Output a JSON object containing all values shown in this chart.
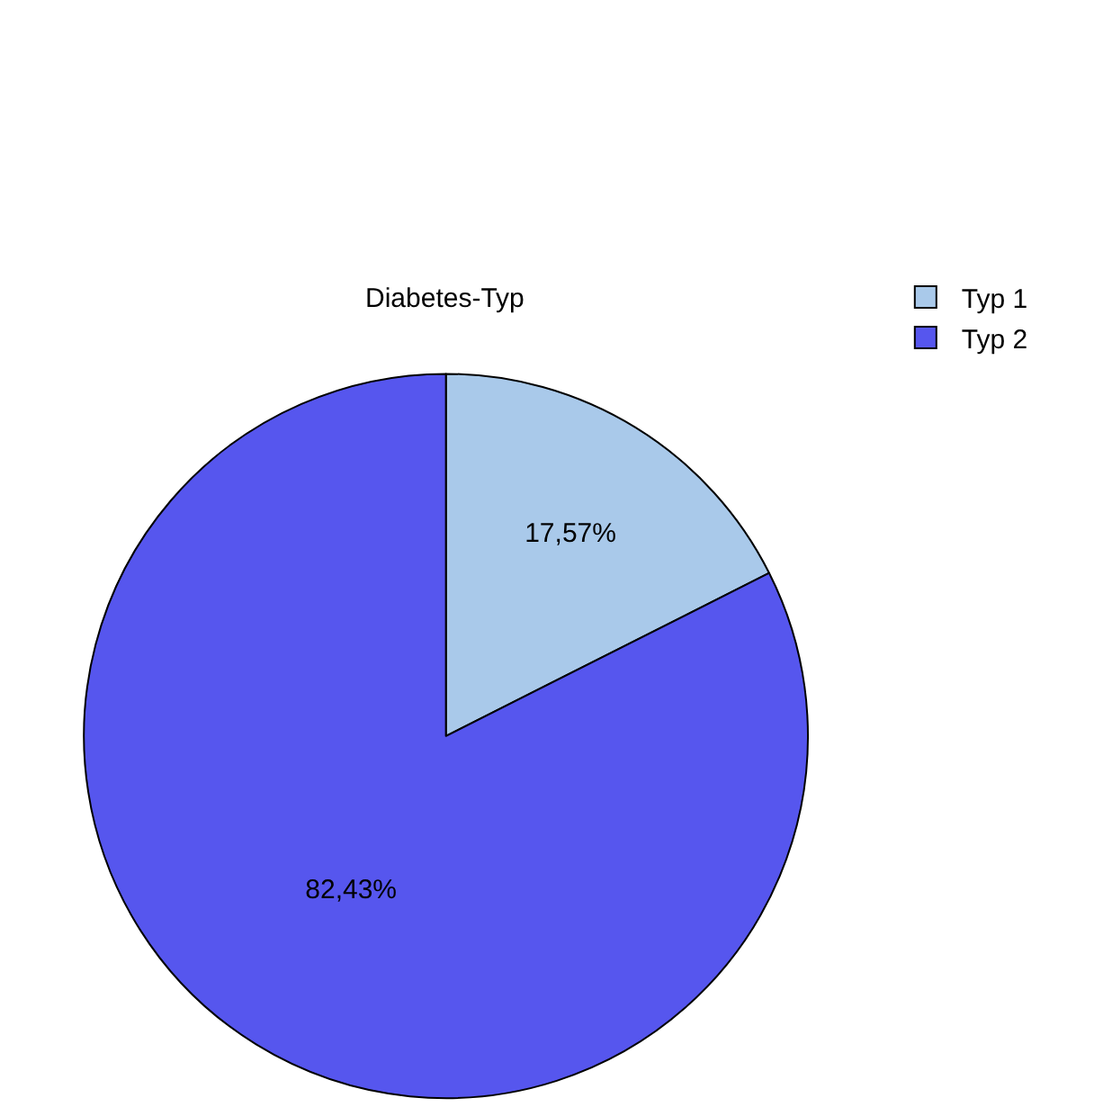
{
  "chart_data": {
    "type": "pie",
    "title": "Diabetes-Typ",
    "categories": [
      "Typ 1",
      "Typ 2"
    ],
    "values": [
      17.57,
      82.43
    ],
    "colors": [
      "#a9c9ea",
      "#5656ee"
    ],
    "value_labels": [
      "17,57%",
      "82,43%"
    ],
    "legend": "top right"
  }
}
